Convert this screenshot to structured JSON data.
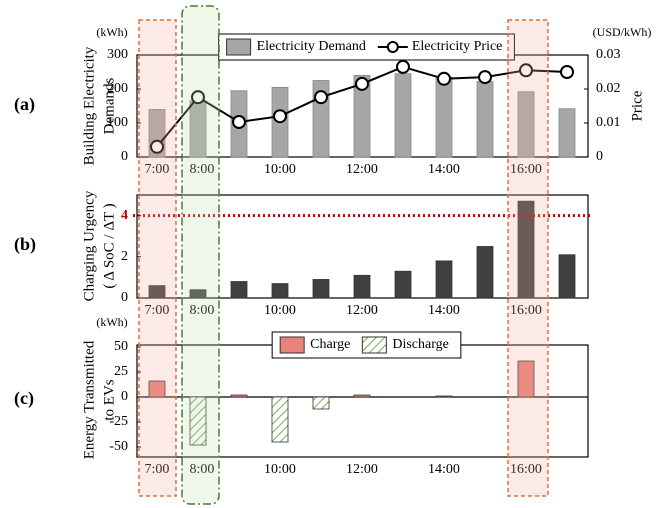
{
  "chart_data": [
    {
      "type": "bar",
      "panel_label": "(a)",
      "y_unit": "(kWh)",
      "y2_unit": "(USD/kWh)",
      "ylabel": [
        "Building Electricity",
        "Demands"
      ],
      "y2label": "Price",
      "categories": [
        "7:00",
        "8:00",
        null,
        "10:00",
        null,
        "12:00",
        null,
        "14:00",
        null,
        "16:00",
        null
      ],
      "series": [
        {
          "name": "Electricity Demand",
          "type": "bar",
          "color": "#a6a6a6",
          "values": [
            140,
            165,
            195,
            205,
            225,
            240,
            245,
            235,
            222,
            192,
            142
          ]
        },
        {
          "name": "Electricity Price",
          "type": "line",
          "axis": "y2",
          "color": "#000000",
          "values": [
            0.003,
            0.0176,
            0.0103,
            0.012,
            0.0176,
            0.0215,
            0.0265,
            0.023,
            0.0235,
            0.0255,
            0.025
          ]
        }
      ],
      "ylim": [
        0,
        300
      ],
      "yticks": [
        0,
        100,
        200,
        300
      ],
      "y2lim": [
        0,
        0.03
      ],
      "y2ticks": [
        0,
        0.01,
        0.02,
        0.03
      ],
      "legend": "top"
    },
    {
      "type": "bar",
      "panel_label": "(b)",
      "ylabel": [
        "Charging Urgency",
        "( Δ SoC / ΔT )"
      ],
      "categories": [
        "7:00",
        "8:00",
        null,
        "10:00",
        null,
        "12:00",
        null,
        "14:00",
        null,
        "16:00",
        null
      ],
      "series": [
        {
          "type": "bar",
          "color": "#404040",
          "values": [
            0.6,
            0.4,
            0.8,
            0.7,
            0.9,
            1.1,
            1.3,
            1.8,
            2.5,
            4.7,
            2.1
          ]
        }
      ],
      "ylim": [
        0,
        5
      ],
      "yticks": [
        0,
        2,
        4
      ],
      "threshold": 4,
      "threshold_color": "#c00000"
    },
    {
      "type": "bar",
      "panel_label": "(c)",
      "y_unit": "(kWh)",
      "ylabel": [
        "Energy Transmitted",
        "to EVs"
      ],
      "categories": [
        "7:00",
        "8:00",
        null,
        "10:00",
        null,
        "12:00",
        null,
        "14:00",
        null,
        "16:00",
        null
      ],
      "series": [
        {
          "name": "Charge",
          "type": "bar",
          "color": "#e8827a",
          "values": [
            16,
            null,
            2,
            null,
            null,
            2,
            null,
            1,
            null,
            36,
            null
          ]
        },
        {
          "name": "Discharge",
          "type": "bar",
          "pattern": "hatch",
          "color": "#70ad47",
          "values": [
            null,
            -48,
            null,
            -45,
            -12,
            null,
            null,
            null,
            null,
            null,
            null
          ]
        }
      ],
      "ylim": [
        -60,
        52
      ],
      "yticks": [
        50,
        25,
        0,
        -25,
        -50
      ],
      "legend": "top"
    }
  ]
}
